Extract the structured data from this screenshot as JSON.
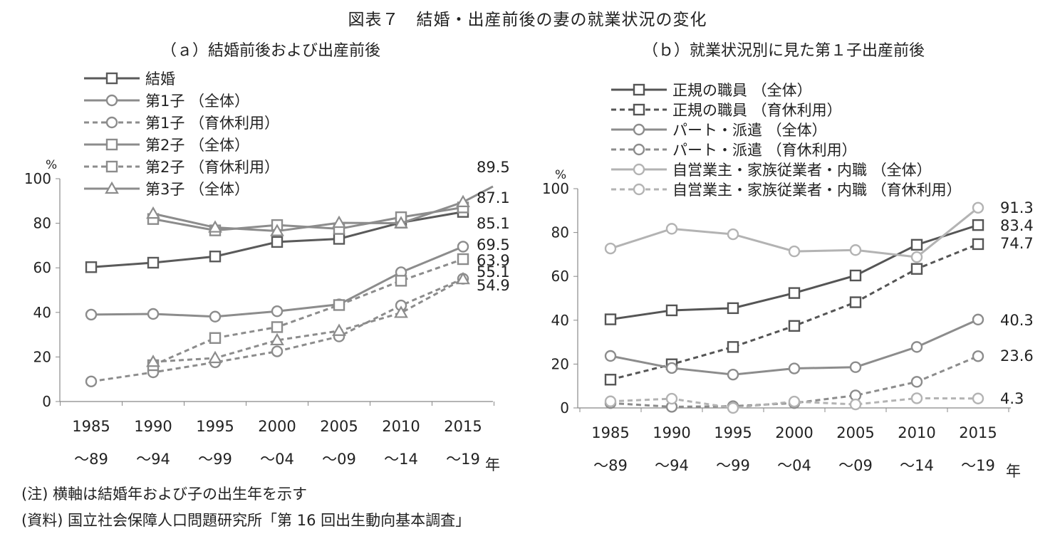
{
  "title": "図表７　結婚・出産前後の妻の就業状況の変化",
  "notes": {
    "note": "(注) 横軸は結婚年および子の出生年を示す",
    "source": "(資料) 国立社会保障人口問題研究所「第 16 回出生動向基本調査」"
  },
  "chart_data": [
    {
      "type": "line",
      "subtitle": "（ａ）結婚前後および出産前後",
      "categories": [
        [
          "1985",
          "～89"
        ],
        [
          "1990",
          "～94"
        ],
        [
          "1995",
          "～99"
        ],
        [
          "2000",
          "～04"
        ],
        [
          "2005",
          "～09"
        ],
        [
          "2010",
          "～14"
        ],
        [
          "2015",
          "～19"
        ]
      ],
      "ylim": [
        0,
        100
      ],
      "yticks": [
        0,
        20,
        40,
        60,
        80,
        100
      ],
      "ylabel": "%",
      "xunit": "年",
      "legend_position": "top-left",
      "series": [
        {
          "name": "結婚",
          "values": [
            60.3,
            62.3,
            65.1,
            71.6,
            73.0,
            80.3,
            85.1
          ],
          "color": "#5a5a5a",
          "dashed": false,
          "marker": "square"
        },
        {
          "name": "第1子 （全体）",
          "values": [
            39.0,
            39.3,
            38.1,
            40.5,
            43.6,
            58.0,
            69.5
          ],
          "color": "#8c8c8c",
          "dashed": false,
          "marker": "circle"
        },
        {
          "name": "第1子 （育休利用）",
          "values": [
            9.0,
            13.1,
            17.6,
            22.5,
            29.2,
            43.1,
            55.1
          ],
          "color": "#8c8c8c",
          "dashed": true,
          "marker": "circle"
        },
        {
          "name": "第2子 （全体）",
          "values": [
            null,
            81.9,
            76.8,
            79.2,
            77.5,
            82.7,
            87.1
          ],
          "color": "#8c8c8c",
          "dashed": false,
          "marker": "square"
        },
        {
          "name": "第2子 （育休利用）",
          "values": [
            null,
            16.3,
            28.5,
            33.4,
            43.3,
            54.2,
            63.9
          ],
          "color": "#8c8c8c",
          "dashed": true,
          "marker": "square"
        },
        {
          "name": "第3子 （全体）",
          "values": [
            null,
            84.3,
            78.1,
            76.5,
            80.2,
            80.0,
            89.5
          ],
          "color": "#8c8c8c",
          "dashed": false,
          "marker": "triangle"
        },
        {
          "name": "",
          "values": [
            null,
            17.8,
            19.5,
            27.5,
            31.7,
            39.8,
            54.9
          ],
          "color": "#8c8c8c",
          "dashed": true,
          "marker": "triangle"
        }
      ],
      "data_labels": [
        "89.5",
        "87.1",
        "85.1",
        "69.5",
        "63.9",
        "55.1",
        "54.9"
      ]
    },
    {
      "type": "line",
      "subtitle": "（ｂ）就業状況別に見た第１子出産前後",
      "categories": [
        [
          "1985",
          "～89"
        ],
        [
          "1990",
          "～94"
        ],
        [
          "1995",
          "～99"
        ],
        [
          "2000",
          "～04"
        ],
        [
          "2005",
          "～09"
        ],
        [
          "2010",
          "～14"
        ],
        [
          "2015",
          "～19"
        ]
      ],
      "ylim": [
        0,
        100
      ],
      "yticks": [
        0,
        20,
        40,
        60,
        80,
        100
      ],
      "ylabel": "%",
      "xunit": "年",
      "legend_position": "top-left",
      "series": [
        {
          "name": "正規の職員 （全体）",
          "values": [
            40.4,
            44.5,
            45.5,
            52.4,
            60.4,
            74.4,
            83.4
          ],
          "color": "#555555",
          "dashed": false,
          "marker": "square"
        },
        {
          "name": "正規の職員 （育休利用）",
          "values": [
            12.9,
            19.9,
            27.8,
            37.4,
            48.2,
            63.4,
            74.7
          ],
          "color": "#555555",
          "dashed": true,
          "marker": "square"
        },
        {
          "name": "パート・派遣 （全体）",
          "values": [
            23.7,
            18.2,
            15.2,
            18.0,
            18.6,
            27.8,
            40.3
          ],
          "color": "#8c8c8c",
          "dashed": false,
          "marker": "circle"
        },
        {
          "name": "パート・派遣 （育休利用）",
          "values": [
            2.2,
            0.5,
            0.8,
            2.2,
            5.7,
            11.9,
            23.6
          ],
          "color": "#8c8c8c",
          "dashed": true,
          "marker": "circle"
        },
        {
          "name": "自営業主・家族従業者・内職 （全体）",
          "values": [
            72.7,
            81.7,
            79.2,
            71.4,
            72.0,
            68.8,
            91.3
          ],
          "color": "#b3b3b3",
          "dashed": false,
          "marker": "circle"
        },
        {
          "name": "自営業主・家族従業者・内職 （育休利用）",
          "values": [
            3.0,
            4.2,
            0.0,
            2.9,
            1.6,
            4.4,
            4.3
          ],
          "color": "#b3b3b3",
          "dashed": true,
          "marker": "circle"
        }
      ],
      "data_labels": [
        "91.3",
        "83.4",
        "74.7",
        "40.3",
        "23.6",
        "4.3"
      ]
    }
  ]
}
